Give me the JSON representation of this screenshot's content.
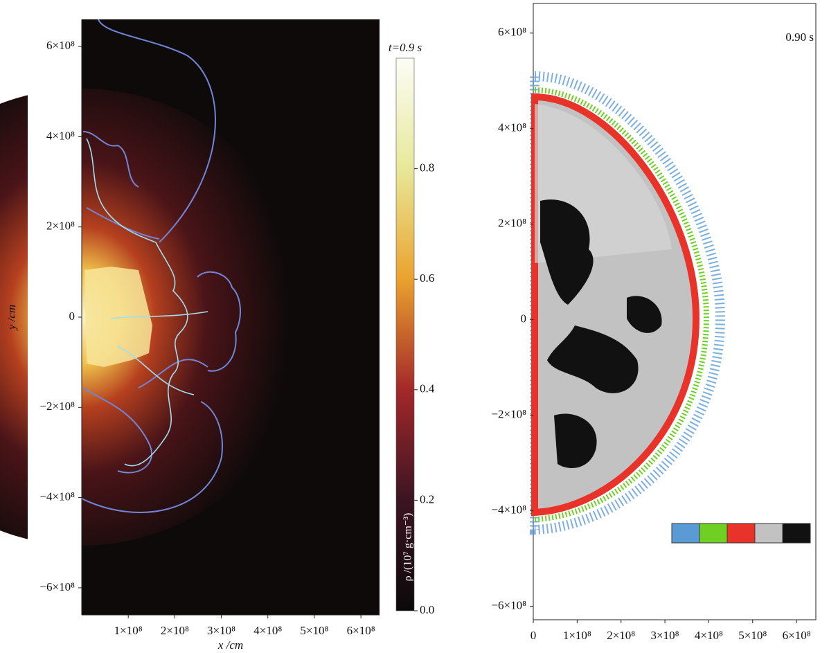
{
  "chart_data": [
    {
      "type": "heatmap",
      "xlabel": "x /cm",
      "ylabel": "y /cm",
      "xlim": [
        0,
        640000000
      ],
      "ylim": [
        -660000000,
        660000000
      ],
      "xticks": [
        {
          "value": 100000000,
          "label": "1×10⁸"
        },
        {
          "value": 200000000,
          "label": "2×10⁸"
        },
        {
          "value": 300000000,
          "label": "3×10⁸"
        },
        {
          "value": 400000000,
          "label": "4×10⁸"
        },
        {
          "value": 500000000,
          "label": "5×10⁸"
        },
        {
          "value": 600000000,
          "label": "6×10⁸"
        }
      ],
      "yticks": [
        {
          "value": 600000000,
          "label": "6×10⁸"
        },
        {
          "value": 400000000,
          "label": "4×10⁸"
        },
        {
          "value": 200000000,
          "label": "2×10⁸"
        },
        0,
        {
          "value": -200000000,
          "label": "−2×10⁸"
        },
        {
          "value": -400000000,
          "label": "−4×10⁸"
        },
        {
          "value": -600000000,
          "label": "−6×10⁸"
        }
      ],
      "colorbar": {
        "title": "t=0.9 s",
        "label": "ρ /(10⁷ g·cm⁻³)",
        "lim": [
          0,
          1
        ],
        "ticks": [
          {
            "value": 0,
            "label": "0.0"
          },
          0.2,
          0.4,
          0.6,
          0.8
        ]
      }
    },
    {
      "type": "scatter",
      "annotation": "0.90 s",
      "xlim": [
        0,
        644000000
      ],
      "ylim": [
        -628000000,
        662000000
      ],
      "xticks": [
        0,
        {
          "value": 100000000,
          "label": "1×10⁸"
        },
        {
          "value": 200000000,
          "label": "2×10⁸"
        },
        {
          "value": 300000000,
          "label": "3×10⁸"
        },
        {
          "value": 400000000,
          "label": "4×10⁸"
        },
        {
          "value": 500000000,
          "label": "5×10⁸"
        },
        {
          "value": 600000000,
          "label": "6×10⁸"
        }
      ],
      "yticks": [
        {
          "value": 600000000,
          "label": "6×10⁸"
        },
        {
          "value": 400000000,
          "label": "4×10⁸"
        },
        {
          "value": 200000000,
          "label": "2×10⁸"
        },
        0,
        {
          "value": -200000000,
          "label": "−2×10⁸"
        },
        {
          "value": -400000000,
          "label": "−4×10⁸"
        },
        {
          "value": -600000000,
          "label": "−6×10⁸"
        }
      ],
      "legend_colors": [
        "#5b9bd5",
        "#6fcf22",
        "#e8332a",
        "#c2c2c2",
        "#111111"
      ]
    }
  ]
}
